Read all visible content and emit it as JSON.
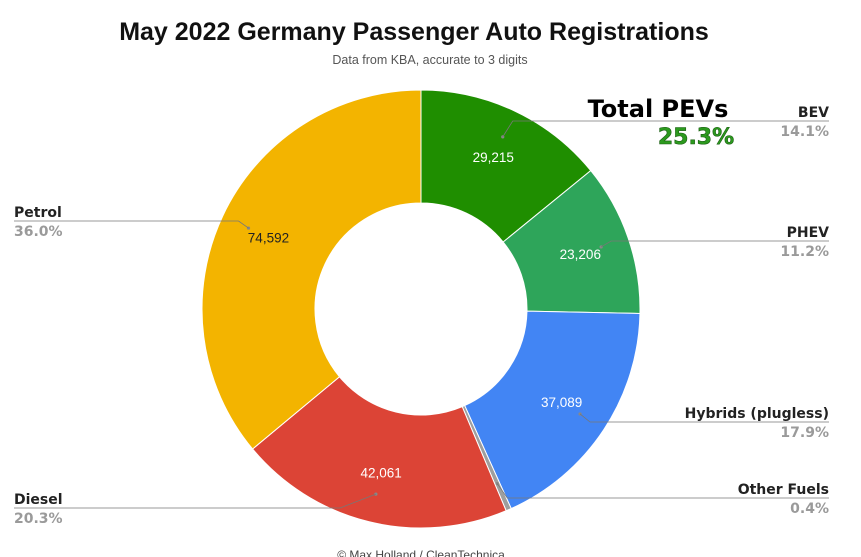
{
  "chart_data": {
    "type": "pie",
    "title": "May 2022 Germany Passenger Auto Registrations",
    "subtitle": "Data from KBA, accurate to 3 digits",
    "donut": true,
    "callout": {
      "title": "Total PEVs",
      "value": "25.3%"
    },
    "credit": "© Max Holland / CleanTechnica",
    "slices": [
      {
        "name": "BEV",
        "value": 29215,
        "value_label": "29,215",
        "percent_label": "14.1%",
        "color": "#1f8e00",
        "value_text_color": "#ffffff"
      },
      {
        "name": "PHEV",
        "value": 23206,
        "value_label": "23,206",
        "percent_label": "11.2%",
        "color": "#2ea55a",
        "value_text_color": "#ffffff"
      },
      {
        "name": "Hybrids (plugless)",
        "value": 37089,
        "value_label": "37,089",
        "percent_label": "17.9%",
        "color": "#4285f4",
        "value_text_color": "#ffffff"
      },
      {
        "name": "Other Fuels",
        "value": 829,
        "value_label": "",
        "percent_label": "0.4%",
        "color": "#9e9e9e",
        "value_text_color": "#ffffff"
      },
      {
        "name": "Diesel",
        "value": 42061,
        "value_label": "42,061",
        "percent_label": "20.3%",
        "color": "#dc4436",
        "value_text_color": "#ffffff"
      },
      {
        "name": "Petrol",
        "value": 74592,
        "value_label": "74,592",
        "percent_label": "36.0%",
        "color": "#f3b400",
        "value_text_color": "#222222"
      }
    ]
  }
}
